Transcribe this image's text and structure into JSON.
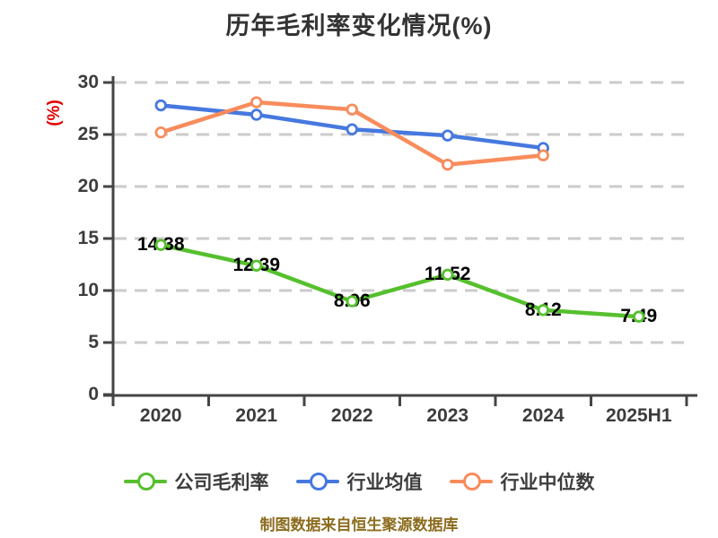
{
  "chart_data": {
    "type": "line",
    "title": "历年毛利率变化情况(%)",
    "ylabel": "(%)",
    "xlabel": "",
    "categories": [
      "2020",
      "2021",
      "2022",
      "2023",
      "2024",
      "2025H1"
    ],
    "series": [
      {
        "name": "公司毛利率",
        "slug": "company-gross-margin",
        "color": "#56c02e",
        "values": [
          14.38,
          12.39,
          8.96,
          11.52,
          8.12,
          7.49
        ],
        "value_labels": true
      },
      {
        "name": "行业均值",
        "slug": "industry-average",
        "color": "#4678df",
        "values": [
          27.8,
          26.9,
          25.5,
          24.9,
          23.7,
          null
        ],
        "value_labels": false
      },
      {
        "name": "行业中位数",
        "slug": "industry-median",
        "color": "#f88c5c",
        "values": [
          25.2,
          28.1,
          27.4,
          22.1,
          23.0,
          null
        ],
        "value_labels": false
      }
    ],
    "ylim": [
      0,
      30
    ],
    "yticks": [
      0,
      5,
      10,
      15,
      20,
      25,
      30
    ],
    "grid": "horizontal-dashed",
    "legend_position": "bottom"
  },
  "caption": {
    "text": "制图数据来自恒生聚源数据库"
  },
  "colors": {
    "background": "#ffffff",
    "axis": "#444444",
    "grid": "#cbcbcb",
    "tick_label": "#3c3c3c",
    "title": "#333333",
    "y_axis_title": "#e00000",
    "data_label": "#000000",
    "caption": "#8c6c1e"
  }
}
